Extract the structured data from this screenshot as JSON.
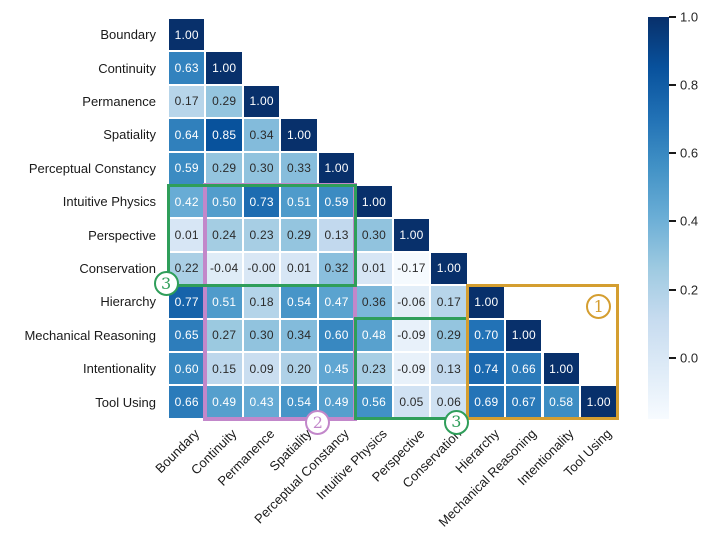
{
  "figure": {
    "description": "Lower-triangular correlation heatmap of cognitive ability dimensions with a Blues colorbar and four annotated group outlines"
  },
  "chart_data": {
    "type": "heatmap",
    "shape": "lower-triangle",
    "categories": [
      "Boundary",
      "Continuity",
      "Permanence",
      "Spatiality",
      "Perceptual Constancy",
      "Intuitive Physics",
      "Perspective",
      "Conservation",
      "Hierarchy",
      "Mechanical Reasoning",
      "Intentionality",
      "Tool Using"
    ],
    "matrix_lower_triangle": [
      [
        "1.00"
      ],
      [
        "0.63",
        "1.00"
      ],
      [
        "0.17",
        "0.29",
        "1.00"
      ],
      [
        "0.64",
        "0.85",
        "0.34",
        "1.00"
      ],
      [
        "0.59",
        "0.29",
        "0.30",
        "0.33",
        "1.00"
      ],
      [
        "0.42",
        "0.50",
        "0.73",
        "0.51",
        "0.59",
        "1.00"
      ],
      [
        "0.01",
        "0.24",
        "0.23",
        "0.29",
        "0.13",
        "0.30",
        "1.00"
      ],
      [
        "0.22",
        "-0.04",
        "-0.00",
        "0.01",
        "0.32",
        "0.01",
        "-0.17",
        "1.00"
      ],
      [
        "0.77",
        "0.51",
        "0.18",
        "0.54",
        "0.47",
        "0.36",
        "-0.06",
        "0.17",
        "1.00"
      ],
      [
        "0.65",
        "0.27",
        "0.30",
        "0.34",
        "0.60",
        "0.48",
        "-0.09",
        "0.29",
        "0.70",
        "1.00"
      ],
      [
        "0.60",
        "0.15",
        "0.09",
        "0.20",
        "0.45",
        "0.23",
        "-0.09",
        "0.13",
        "0.74",
        "0.66",
        "1.00"
      ],
      [
        "0.66",
        "0.49",
        "0.43",
        "0.54",
        "0.49",
        "0.56",
        "0.05",
        "0.06",
        "0.69",
        "0.67",
        "0.58",
        "1.00"
      ]
    ],
    "colormap": "Blues",
    "color_scale": {
      "vmin": -0.18,
      "vmax": 1.0
    },
    "colorbar": {
      "position": "right",
      "ticks": [
        "1.0",
        "0.8",
        "0.6",
        "0.4",
        "0.2",
        "0.0"
      ]
    },
    "grid": false,
    "annotations": [
      {
        "id": "group-2",
        "symbol": "2",
        "color": "#c287ca",
        "border_px": 4,
        "rows": [
          5,
          11
        ],
        "cols": [
          1,
          4
        ],
        "badge_grid_xy": [
          4.0,
          12.12
        ]
      },
      {
        "id": "group-3a",
        "symbol": "3",
        "color": "#2f9e5a",
        "border_px": 3,
        "rows": [
          5,
          7
        ],
        "cols": [
          0,
          4
        ],
        "badge_grid_xy": [
          -0.05,
          7.95
        ]
      },
      {
        "id": "group-3b",
        "symbol": "3",
        "color": "#2f9e5a",
        "border_px": 3,
        "rows": [
          9,
          11
        ],
        "cols": [
          5,
          7
        ],
        "badge_grid_xy": [
          7.7,
          12.1
        ]
      },
      {
        "id": "group-1",
        "symbol": "1",
        "color": "#d49e30",
        "border_px": 3,
        "rows": [
          8,
          11
        ],
        "cols": [
          8,
          11
        ],
        "badge_grid_xy": [
          11.5,
          8.65
        ]
      }
    ],
    "cell_text_colors": {
      "on_dark": "#ffffff",
      "on_light": "#2b2b2b"
    }
  }
}
